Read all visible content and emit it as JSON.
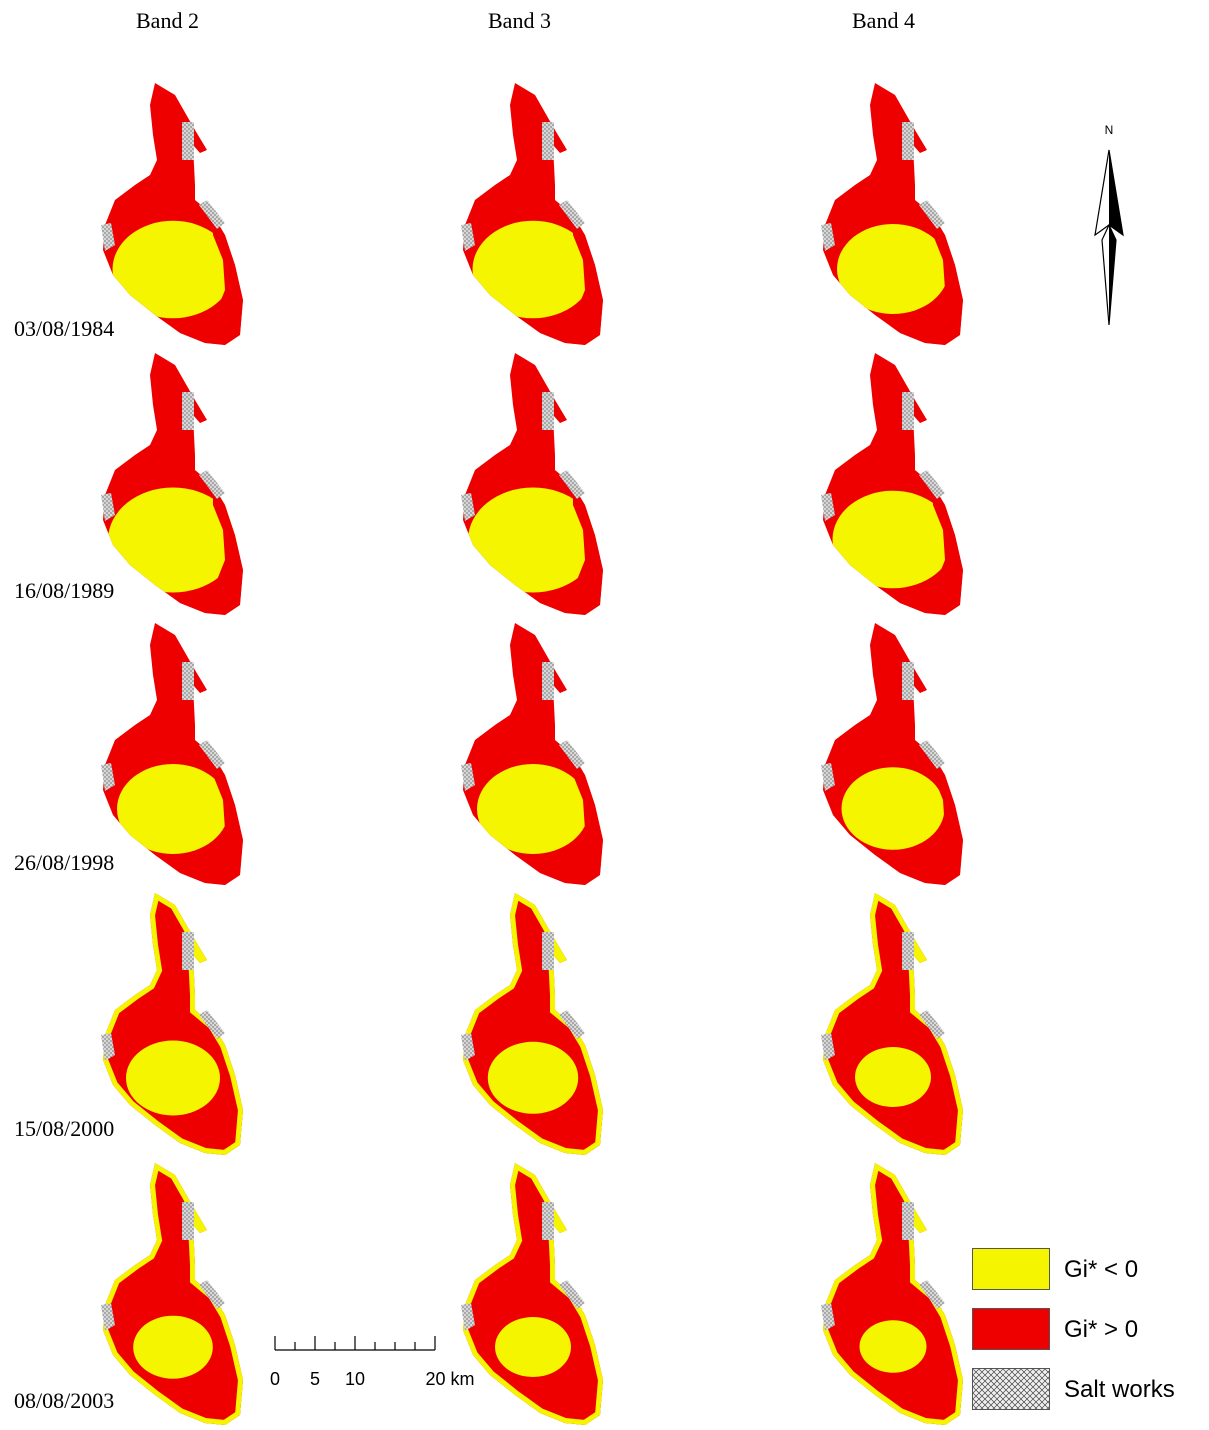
{
  "columns": [
    "Band 2",
    "Band 3",
    "Band 4"
  ],
  "rows": [
    "03/08/1984",
    "16/08/1989",
    "26/08/1998",
    "15/08/2000",
    "08/08/2003"
  ],
  "hotspot_share_red": [
    [
      0.55,
      0.55,
      0.6
    ],
    [
      0.5,
      0.5,
      0.55
    ],
    [
      0.6,
      0.6,
      0.65
    ],
    [
      0.7,
      0.72,
      0.8
    ],
    [
      0.78,
      0.8,
      0.85
    ]
  ],
  "north_arrow": {
    "label": "N"
  },
  "scale_bar": {
    "ticks": [
      "0",
      "5",
      "10",
      "20 km"
    ]
  },
  "legend": [
    {
      "label": "Gi* < 0",
      "color": "#f5f500"
    },
    {
      "label": "Gi* > 0",
      "color": "#ee0000"
    },
    {
      "label": "Salt works",
      "pattern": "crosshatch"
    }
  ],
  "colors": {
    "low": "#f5f500",
    "high": "#ee0000",
    "salt": "#c8c8c8"
  }
}
